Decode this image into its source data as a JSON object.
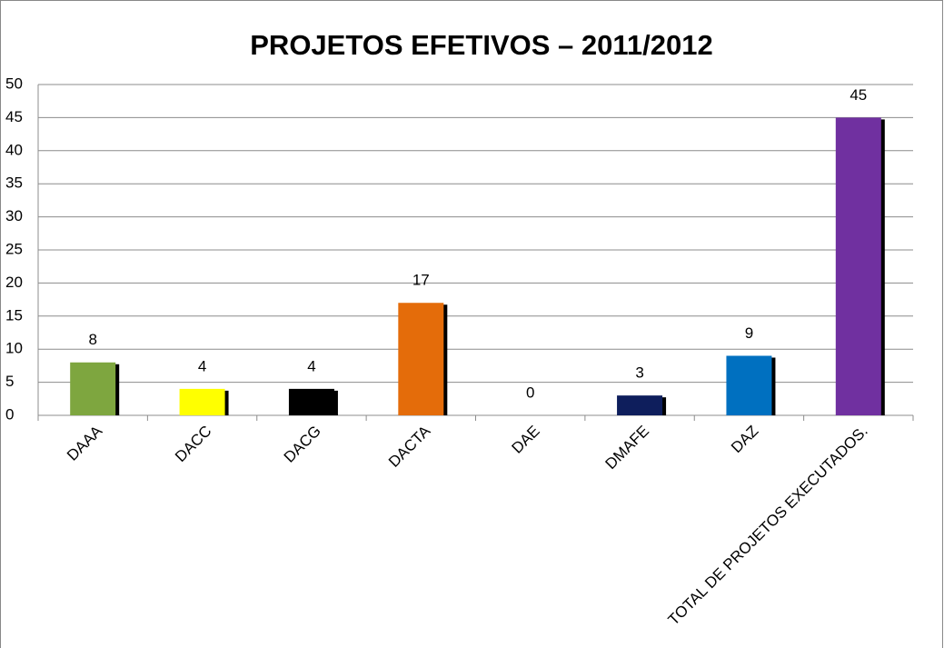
{
  "chart_data": {
    "type": "bar",
    "title": "PROJETOS EFETIVOS – 2011/2012",
    "categories": [
      "DAAA",
      "DACC",
      "DACG",
      "DACTA",
      "DAE",
      "DMAFE",
      "DAZ",
      "TOTAL DE PROJETOS EXECUTADOS."
    ],
    "values": [
      8,
      4,
      4,
      17,
      0,
      3,
      9,
      45
    ],
    "colors": [
      "#7ea63f",
      "#ffff00",
      "#000000",
      "#e46c0a",
      "#7ea63f",
      "#0e1e5c",
      "#0070c0",
      "#7030a0"
    ],
    "ylim": [
      0,
      50
    ],
    "yticks": [
      0,
      5,
      10,
      15,
      20,
      25,
      30,
      35,
      40,
      45,
      50
    ],
    "grid": true
  }
}
